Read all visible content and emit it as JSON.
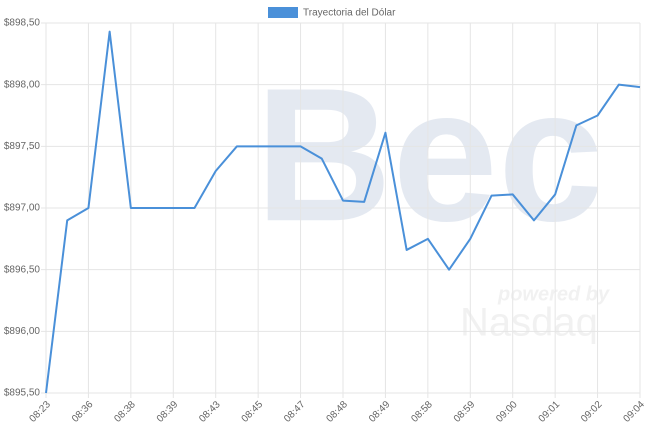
{
  "chart_data": {
    "type": "line",
    "watermark": {
      "logo": "Bec",
      "tagline": "powered by",
      "brand": "Nasdaq"
    },
    "categories": [
      "08:23",
      null,
      "08:36",
      null,
      "08:38",
      null,
      "08:39",
      null,
      "08:43",
      null,
      "08:45",
      null,
      "08:47",
      null,
      "08:48",
      null,
      "08:49",
      null,
      "08:58",
      null,
      "08:59",
      null,
      "09:00",
      null,
      "09:01",
      null,
      "09:02",
      null,
      "09:04"
    ],
    "series": [
      {
        "name": "Trayectoria del Dólar",
        "color": "#4a90d9",
        "values": [
          895.5,
          896.9,
          897.0,
          898.43,
          897.0,
          897.0,
          897.0,
          897.0,
          897.3,
          897.5,
          897.5,
          897.5,
          897.5,
          897.4,
          897.06,
          897.05,
          897.61,
          896.66,
          896.75,
          896.5,
          896.75,
          897.1,
          897.11,
          896.9,
          897.11,
          897.67,
          897.75,
          898.0,
          897.98
        ]
      }
    ],
    "ylim": [
      895.5,
      898.5
    ],
    "yticks": [
      {
        "value": 895.5,
        "label": "$895,50"
      },
      {
        "value": 896.0,
        "label": "$896,00"
      },
      {
        "value": 896.5,
        "label": "$896,50"
      },
      {
        "value": 897.0,
        "label": "$897,00"
      },
      {
        "value": 897.5,
        "label": "$897,50"
      },
      {
        "value": 898.0,
        "label": "$898,00"
      },
      {
        "value": 898.5,
        "label": "$898,50"
      }
    ],
    "grid": true
  }
}
